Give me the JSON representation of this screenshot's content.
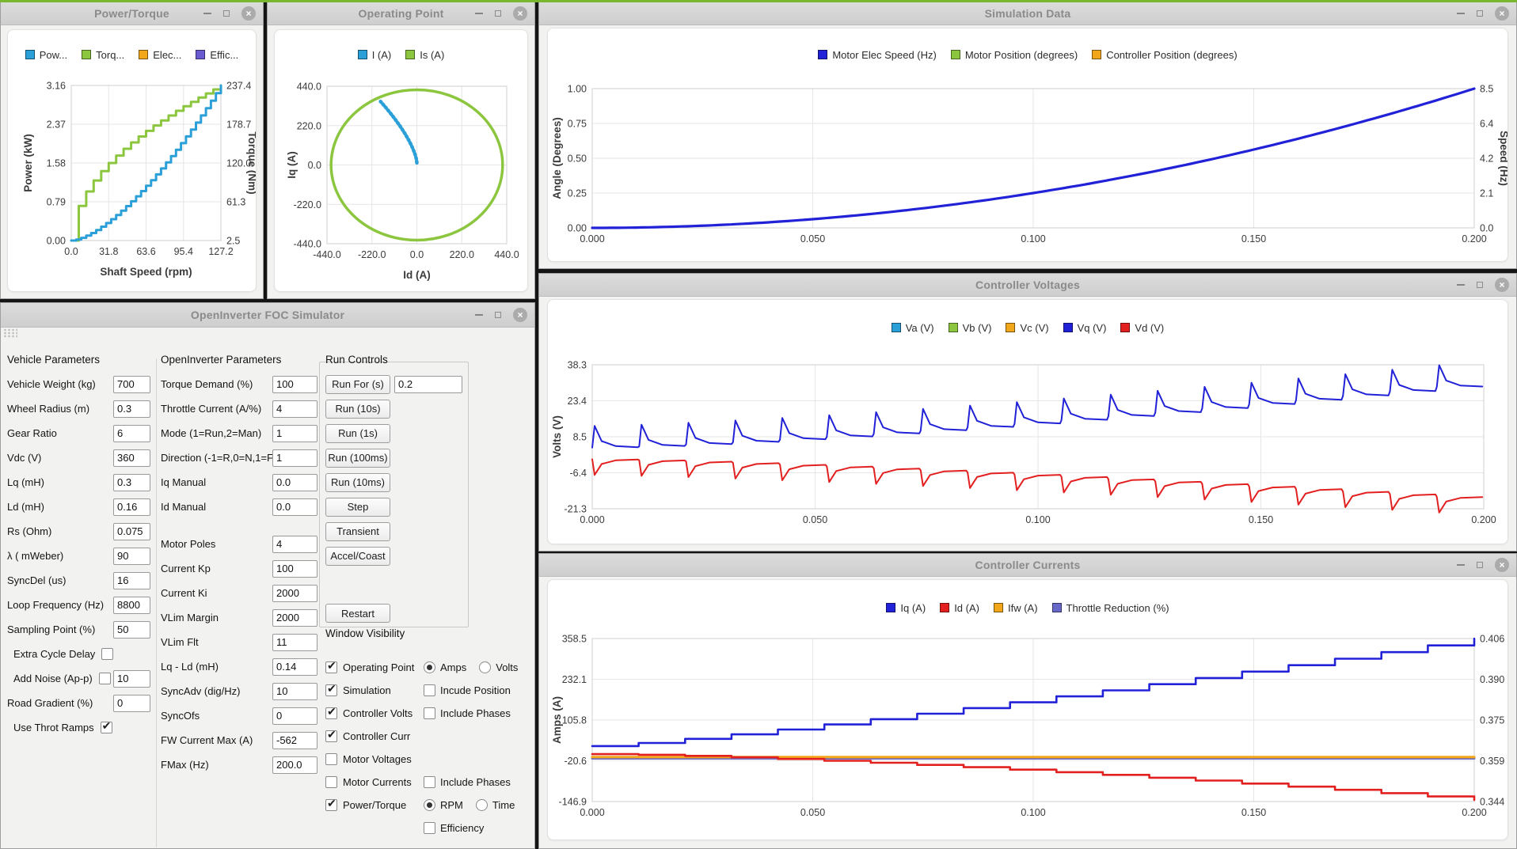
{
  "theme": {
    "accent_green": "#79b72e",
    "titlebar_text": "#8a8a8a",
    "window_bg": "#f2f2f0",
    "card_bg": "#ffffff"
  },
  "windows": {
    "power_torque": {
      "title": "Power/Torque"
    },
    "operating_point": {
      "title": "Operating Point"
    },
    "simulation_data": {
      "title": "Simulation Data"
    },
    "controller_voltages": {
      "title": "Controller Voltages"
    },
    "controller_currents": {
      "title": "Controller Currents"
    },
    "simulator": {
      "title": "OpenInverter FOC Simulator"
    }
  },
  "simulator": {
    "vehicle": {
      "title": "Vehicle Parameters",
      "fields": [
        {
          "label": "Vehicle Weight (kg)",
          "value": "700"
        },
        {
          "label": "Wheel Radius (m)",
          "value": "0.3"
        },
        {
          "label": "Gear Ratio",
          "value": "6"
        },
        {
          "label": "Vdc (V)",
          "value": "360"
        },
        {
          "label": "Lq (mH)",
          "value": "0.3"
        },
        {
          "label": "Ld (mH)",
          "value": "0.16"
        },
        {
          "label": "Rs (Ohm)",
          "value": "0.075"
        },
        {
          "label": "λ ( mWeber)",
          "value": "90"
        },
        {
          "label": "SyncDel (us)",
          "value": "16"
        },
        {
          "label": "Loop Frequency (Hz)",
          "value": "8800"
        },
        {
          "label": "Sampling Point (%)",
          "value": "50"
        },
        {
          "label": "Extra Cycle Delay",
          "checkbox": "unchecked",
          "indent": true
        },
        {
          "label": "Add Noise (Ap-p)",
          "checkbox": "unchecked",
          "value": "10",
          "indent": true
        },
        {
          "label": "Road Gradient (%)",
          "value": "0"
        },
        {
          "label": "Use Throt Ramps",
          "checkbox": "checked",
          "indent": true
        }
      ]
    },
    "openinverter": {
      "title": "OpenInverter Parameters",
      "fields": [
        {
          "label": "Torque Demand (%)",
          "value": "100"
        },
        {
          "label": "Throttle Current (A/%)",
          "value": "4"
        },
        {
          "label": "Mode (1=Run,2=Man)",
          "value": "1"
        },
        {
          "label": "Direction (-1=R,0=N,1=F)",
          "value": "1"
        },
        {
          "label": "Iq Manual",
          "value": "0.0"
        },
        {
          "label": "Id Manual",
          "value": "0.0"
        },
        {
          "label": "Motor Poles",
          "value": "4",
          "gap": true
        },
        {
          "label": "Current Kp",
          "value": "100"
        },
        {
          "label": "Current Ki",
          "value": "2000"
        },
        {
          "label": "VLim Margin",
          "value": "2000"
        },
        {
          "label": "VLim Flt",
          "value": "11"
        },
        {
          "label": "Lq - Ld (mH)",
          "value": "0.14"
        },
        {
          "label": "SyncAdv (dig/Hz)",
          "value": "10"
        },
        {
          "label": "SyncOfs",
          "value": "0"
        },
        {
          "label": "FW Current Max (A)",
          "value": "-562"
        },
        {
          "label": "FMax (Hz)",
          "value": "200.0"
        }
      ]
    },
    "run_controls": {
      "title": "Run Controls",
      "run_for": {
        "label": "Run For (s)",
        "value": "0.2"
      },
      "buttons": [
        "Run (10s)",
        "Run (1s)",
        "Run (100ms)",
        "Run (10ms)",
        "Step",
        "Transient",
        "Accel/Coast"
      ],
      "restart": "Restart"
    },
    "visibility": {
      "title": "Window Visibility",
      "rows": [
        {
          "label": "Operating Point",
          "checked": true,
          "radios": [
            {
              "label": "Amps",
              "selected": true
            },
            {
              "label": "Volts",
              "selected": false
            }
          ]
        },
        {
          "label": "Simulation",
          "checked": true,
          "extra": {
            "label": "Incude Position",
            "checked": false
          }
        },
        {
          "label": "Controller Volts",
          "checked": true,
          "extra": {
            "label": "Include Phases",
            "checked": false
          }
        },
        {
          "label": "Controller Curr",
          "checked": true
        },
        {
          "label": "Motor Voltages",
          "checked": false
        },
        {
          "label": "Motor Currents",
          "checked": false,
          "extra": {
            "label": "Include Phases",
            "checked": false
          }
        },
        {
          "label": "Power/Torque",
          "checked": true,
          "radios": [
            {
              "label": "RPM",
              "selected": true
            },
            {
              "label": "Time",
              "selected": false
            }
          ]
        },
        {
          "label": "Efficiency",
          "checked": false,
          "second_col": true
        }
      ]
    }
  },
  "chart_data": [
    {
      "id": "power_torque",
      "type": "line",
      "title": "Power/Torque",
      "xlabel": "Shaft Speed (rpm)",
      "ylabel_left": "Power (kW)",
      "ylabel_right": "Torque (Nm)",
      "xticks": [
        "0.0",
        "31.8",
        "63.6",
        "95.4",
        "127.2"
      ],
      "yticks_left": [
        "3.16",
        "2.37",
        "1.58",
        "0.79",
        "0.00"
      ],
      "yticks_right": [
        "237.4",
        "178.7",
        "120.0",
        "61.3",
        "2.5"
      ],
      "xlim": [
        0,
        127.2
      ],
      "ylim_left": [
        0,
        3.16
      ],
      "ylim_right": [
        2.5,
        237.4
      ],
      "grid": true,
      "legend_position": "top",
      "legend": [
        {
          "label": "Pow...",
          "color": "#2b9fd8"
        },
        {
          "label": "Torq...",
          "color": "#8cc63f"
        },
        {
          "label": "Elec...",
          "color": "#f2a71b"
        },
        {
          "label": "Effic...",
          "color": "#6a5bd0"
        }
      ],
      "series": [
        {
          "name": "Torque (Nm)",
          "axis": "right",
          "color": "#8cc63f",
          "width": 3,
          "gen": {
            "kind": "pow",
            "base": 2.5,
            "amp": 234.9,
            "exp": 0.5,
            "stairs": 20
          }
        },
        {
          "name": "Power (kW)",
          "axis": "left",
          "color": "#2b9fd8",
          "width": 3,
          "gen": {
            "kind": "pow",
            "base": 0,
            "amp": 3.16,
            "exp": 1.5,
            "stairs": 30
          }
        }
      ]
    },
    {
      "id": "operating_point",
      "type": "scatter",
      "title": "Operating Point",
      "xlabel": "Id (A)",
      "ylabel_left": "Iq (A)",
      "xticks": [
        "-440.0",
        "-220.0",
        "0.0",
        "220.0",
        "440.0"
      ],
      "yticks_left": [
        "440.0",
        "220.0",
        "0.0",
        "-220.0",
        "-440.0"
      ],
      "xlim": [
        -440,
        440
      ],
      "ylim_left": [
        -440,
        440
      ],
      "grid": true,
      "legend_position": "top",
      "legend": [
        {
          "label": "I (A)",
          "color": "#2b9fd8"
        },
        {
          "label": "Is (A)",
          "color": "#8cc63f"
        }
      ],
      "series": [
        {
          "name": "Is (A)",
          "axis": "left",
          "color": "#8cc63f",
          "width": 3.5,
          "gen": {
            "kind": "ellipse",
            "cx": 0,
            "cy": 0,
            "r": 420
          }
        },
        {
          "name": "I (A)",
          "axis": "left",
          "color": "#2b9fd8",
          "width": 4.5,
          "dash": "2 3",
          "gen": {
            "kind": "arc",
            "iq0": 12,
            "iq1": 355,
            "id_amp": -178,
            "id_exp": 1.5
          }
        }
      ]
    },
    {
      "id": "simulation_data",
      "type": "line",
      "title": "Simulation Data",
      "ylabel_left": "Angle (Degrees)",
      "ylabel_right": "Speed (Hz)",
      "xticks": [
        "0.000",
        "0.050",
        "0.100",
        "0.150",
        "0.200"
      ],
      "yticks_left": [
        "1.00",
        "0.75",
        "0.50",
        "0.25",
        "0.00"
      ],
      "yticks_right": [
        "8.5",
        "6.4",
        "4.2",
        "2.1",
        "0.0"
      ],
      "xlim": [
        0,
        0.2
      ],
      "ylim_left": [
        0,
        1
      ],
      "ylim_right": [
        0,
        8.5
      ],
      "grid": true,
      "legend_position": "top",
      "legend": [
        {
          "label": "Motor Elec Speed (Hz)",
          "color": "#2121d8"
        },
        {
          "label": "Motor Position (degrees)",
          "color": "#8cc63f"
        },
        {
          "label": "Controller Position (degrees)",
          "color": "#f2a71b"
        }
      ],
      "series": [
        {
          "name": "Motor Elec Speed (Hz)",
          "axis": "right",
          "color": "#2121d8",
          "width": 3.2,
          "gen": {
            "kind": "pow",
            "base": 0,
            "amp": 8.5,
            "exp": 2
          }
        }
      ]
    },
    {
      "id": "controller_voltages",
      "type": "line",
      "title": "Controller Voltages",
      "ylabel_left": "Volts (V)",
      "xticks": [
        "0.000",
        "0.050",
        "0.100",
        "0.150",
        "0.200"
      ],
      "yticks_left": [
        "38.3",
        "23.4",
        "8.5",
        "-6.4",
        "-21.3"
      ],
      "xlim": [
        0,
        0.2
      ],
      "ylim_left": [
        -21.3,
        38.3
      ],
      "grid": true,
      "legend_position": "top",
      "legend": [
        {
          "label": "Va (V)",
          "color": "#2b9fd8"
        },
        {
          "label": "Vb (V)",
          "color": "#8cc63f"
        },
        {
          "label": "Vc (V)",
          "color": "#f2a71b"
        },
        {
          "label": "Vq (V)",
          "color": "#2121d8"
        },
        {
          "label": "Vd (V)",
          "color": "#e32020"
        }
      ],
      "series": [
        {
          "name": "Vq (V)",
          "axis": "left",
          "color": "#2121d8",
          "width": 2,
          "gen": {
            "kind": "spiky",
            "b0": 4,
            "b1": 31,
            "bexp": 1.35,
            "steps": 19,
            "spike": 9
          }
        },
        {
          "name": "Vd (V)",
          "axis": "left",
          "color": "#e32020",
          "width": 2,
          "gen": {
            "kind": "spiky",
            "b0": -0.8,
            "b1": -17.5,
            "bexp": 1.3,
            "steps": 19,
            "spike": -6.5
          }
        }
      ]
    },
    {
      "id": "controller_currents",
      "type": "line",
      "title": "Controller Currents",
      "ylabel_left": "Amps (A)",
      "xticks": [
        "0.000",
        "0.050",
        "0.100",
        "0.150",
        "0.200"
      ],
      "yticks_left": [
        "358.5",
        "232.1",
        "105.8",
        "-20.6",
        "-146.9"
      ],
      "yticks_right": [
        "0.406",
        "0.390",
        "0.375",
        "0.359",
        "0.344"
      ],
      "xlim": [
        0,
        0.2
      ],
      "ylim_left": [
        -146.9,
        358.5
      ],
      "ylim_right": [
        0.344,
        0.406
      ],
      "grid": true,
      "legend_position": "top",
      "legend": [
        {
          "label": "Iq (A)",
          "color": "#2121d8"
        },
        {
          "label": "Id (A)",
          "color": "#e32020"
        },
        {
          "label": "Ifw (A)",
          "color": "#f2a71b"
        },
        {
          "label": "Throttle Reduction (%)",
          "color": "#6868c8"
        }
      ],
      "series": [
        {
          "name": "Throttle Reduction (%)",
          "axis": "right",
          "color": "#6868c8",
          "width": 3,
          "gen": {
            "kind": "flat",
            "y": 0.3604
          }
        },
        {
          "name": "Ifw (A)",
          "axis": "left",
          "color": "#f2a71b",
          "width": 3.2,
          "gen": {
            "kind": "flat",
            "y": -9
          }
        },
        {
          "name": "Id (A)",
          "axis": "left",
          "color": "#e32020",
          "width": 2.6,
          "gen": {
            "kind": "pow",
            "base": 0,
            "amp": -142,
            "exp": 1.45,
            "stairs": 19
          }
        },
        {
          "name": "Iq (A)",
          "axis": "left",
          "color": "#2121d8",
          "width": 2.6,
          "gen": {
            "kind": "pow",
            "base": 25,
            "amp": 333,
            "exp": 1.2,
            "stairs": 19
          }
        }
      ]
    }
  ]
}
